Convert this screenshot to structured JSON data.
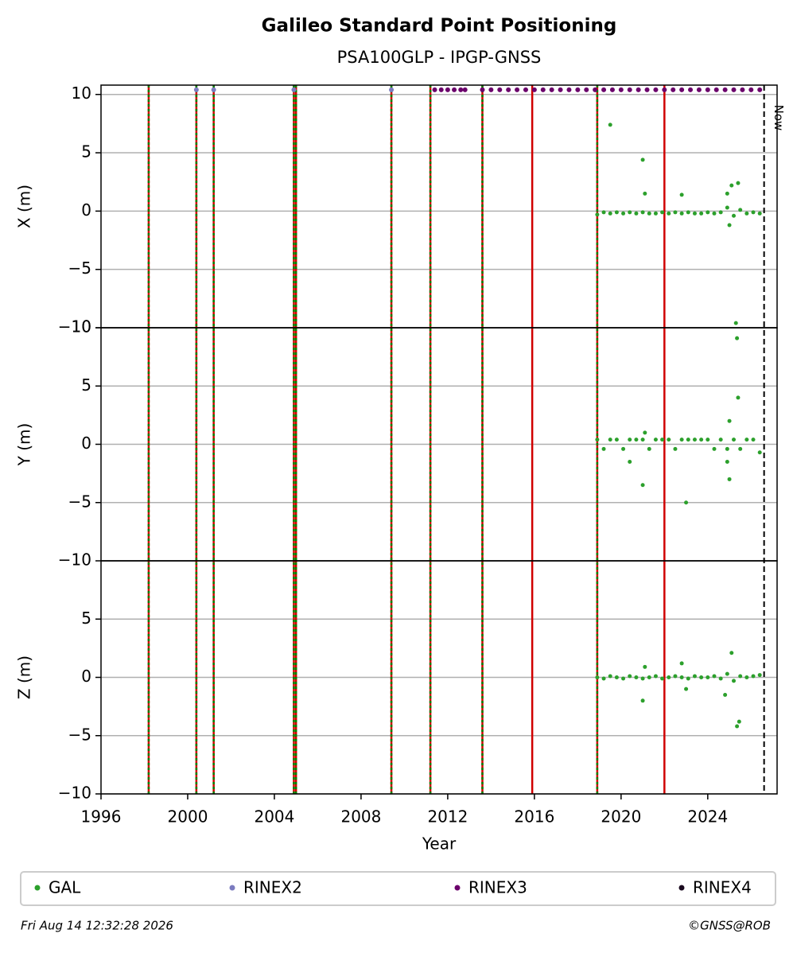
{
  "title": "Galileo Standard Point Positioning",
  "subtitle": "PSA100GLP - IPGP-GNSS",
  "red_lines": [
    1998.2,
    2000.4,
    2001.2,
    2004.9,
    2005.0,
    2009.4,
    2011.2,
    2013.6,
    2015.9,
    2018.9,
    2022.0
  ],
  "green_lines": [
    1998.2,
    2000.4,
    2001.2,
    2004.9,
    2005.0,
    2009.4,
    2011.2,
    2013.6,
    2018.9
  ],
  "now": {
    "x": 2026.6,
    "label": "Now"
  },
  "footer_left": "Fri Aug 14 12:32:28 2026",
  "footer_right": "©GNSS@ROB",
  "chart_data": [
    {
      "type": "scatter",
      "ylabel": "X (m)",
      "xlim": [
        1996,
        2027.2
      ],
      "ylim": [
        -10,
        10.8
      ],
      "grid": true,
      "yticks": [
        {
          "value": -10,
          "label": "−10"
        },
        {
          "value": -5,
          "label": "−5"
        },
        0,
        5,
        10
      ],
      "series": [
        {
          "name": "GAL",
          "color": "#2ca02c",
          "x": [
            2018.9,
            2019.2,
            2019.5,
            2019.8,
            2020.1,
            2020.4,
            2020.7,
            2021.0,
            2021.3,
            2021.6,
            2021.9,
            2022.2,
            2022.5,
            2022.8,
            2023.1,
            2023.4,
            2023.7,
            2024.0,
            2024.3,
            2024.6,
            2024.9,
            2025.2,
            2025.5,
            2025.8,
            2026.1,
            2026.4,
            2019.5,
            2021.0,
            2021.1,
            2022.8,
            2025.1,
            2025.4,
            2025.3,
            2024.9,
            2025.0
          ],
          "values": [
            -0.3,
            -0.1,
            -0.2,
            -0.1,
            -0.2,
            -0.1,
            -0.2,
            -0.1,
            -0.2,
            -0.2,
            -0.1,
            -0.2,
            -0.1,
            -0.2,
            -0.1,
            -0.2,
            -0.2,
            -0.1,
            -0.2,
            -0.1,
            0.3,
            -0.4,
            0.1,
            -0.2,
            -0.1,
            -0.2,
            7.4,
            4.4,
            1.5,
            1.4,
            2.2,
            2.4,
            -9.6,
            1.5,
            -1.2
          ]
        },
        {
          "name": "RINEX2",
          "color": "#7b7bbf",
          "x": [
            2000.4,
            2001.2,
            2004.9,
            2009.4
          ],
          "values": [
            10.4,
            10.4,
            10.4,
            10.4
          ]
        },
        {
          "name": "RINEX3",
          "color": "#6b006b",
          "x": [
            2011.4,
            2011.7,
            2012.0,
            2012.3,
            2012.6,
            2012.8,
            2013.6,
            2014.0,
            2014.4,
            2014.8,
            2015.2,
            2015.6,
            2016.0,
            2016.4,
            2016.8,
            2017.2,
            2017.6,
            2018.0,
            2018.4,
            2018.8,
            2019.2,
            2019.6,
            2020.0,
            2020.4,
            2020.8,
            2021.2,
            2021.6,
            2022.0,
            2022.4,
            2022.8,
            2023.2,
            2023.6,
            2024.0,
            2024.4,
            2024.8,
            2025.2,
            2025.6,
            2026.0,
            2026.4
          ],
          "values": [
            10.4,
            10.4,
            10.4,
            10.4,
            10.4,
            10.4,
            10.4,
            10.4,
            10.4,
            10.4,
            10.4,
            10.4,
            10.4,
            10.4,
            10.4,
            10.4,
            10.4,
            10.4,
            10.4,
            10.4,
            10.4,
            10.4,
            10.4,
            10.4,
            10.4,
            10.4,
            10.4,
            10.4,
            10.4,
            10.4,
            10.4,
            10.4,
            10.4,
            10.4,
            10.4,
            10.4,
            10.4,
            10.4,
            10.4
          ]
        },
        {
          "name": "RINEX4",
          "color": "#1a0a1f",
          "x": [],
          "values": []
        }
      ]
    },
    {
      "type": "scatter",
      "ylabel": "Y (m)",
      "xlim": [
        1996,
        2027.2
      ],
      "ylim": [
        -10,
        10
      ],
      "grid": true,
      "yticks": [
        {
          "value": -10,
          "label": "−10"
        },
        {
          "value": -5,
          "label": "−5"
        },
        0,
        5,
        10
      ],
      "series": [
        {
          "name": "GAL",
          "color": "#2ca02c",
          "x": [
            2018.9,
            2019.2,
            2019.5,
            2019.8,
            2020.1,
            2020.4,
            2020.7,
            2021.0,
            2021.3,
            2021.6,
            2021.9,
            2022.2,
            2022.5,
            2022.8,
            2023.1,
            2023.4,
            2023.7,
            2024.0,
            2024.3,
            2024.6,
            2024.9,
            2025.2,
            2025.5,
            2025.8,
            2026.1,
            2026.4,
            2020.4,
            2021.0,
            2021.1,
            2023.0,
            2025.0,
            2025.4,
            2025.35,
            2025.0,
            2024.9
          ],
          "values": [
            0.4,
            -0.4,
            0.4,
            0.4,
            -0.4,
            0.4,
            0.4,
            0.4,
            -0.4,
            0.4,
            0.4,
            0.4,
            -0.4,
            0.4,
            0.4,
            0.4,
            0.4,
            0.4,
            -0.4,
            0.4,
            -0.4,
            0.4,
            -0.4,
            0.4,
            0.4,
            -0.7,
            -1.5,
            -3.5,
            1,
            -5,
            2,
            4,
            9.1,
            -3,
            -1.5
          ]
        }
      ]
    },
    {
      "type": "scatter",
      "ylabel": "Z (m)",
      "xlabel": "Year",
      "xlim": [
        1996,
        2027.2
      ],
      "ylim": [
        -10,
        10
      ],
      "grid": true,
      "xticks": [
        1996,
        2000,
        2004,
        2008,
        2012,
        2016,
        2020,
        2024
      ],
      "yticks": [
        {
          "value": -10,
          "label": "−10"
        },
        {
          "value": -5,
          "label": "−5"
        },
        0,
        5
      ],
      "series": [
        {
          "name": "GAL",
          "color": "#2ca02c",
          "x": [
            2018.9,
            2019.2,
            2019.5,
            2019.8,
            2020.1,
            2020.4,
            2020.7,
            2021.0,
            2021.3,
            2021.6,
            2021.9,
            2022.2,
            2022.5,
            2022.8,
            2023.1,
            2023.4,
            2023.7,
            2024.0,
            2024.3,
            2024.6,
            2024.9,
            2025.2,
            2025.5,
            2025.8,
            2026.1,
            2026.4,
            2021.0,
            2021.1,
            2022.8,
            2023.0,
            2025.1,
            2025.35,
            2025.45,
            2024.8
          ],
          "values": [
            0,
            -0.1,
            0.1,
            0,
            -0.1,
            0.1,
            0,
            -0.1,
            0,
            0.1,
            -0.1,
            0,
            0.1,
            0,
            -0.1,
            0.1,
            0,
            0,
            0.1,
            -0.1,
            0.3,
            -0.3,
            0.1,
            0,
            0.1,
            0.2,
            -2,
            0.9,
            1.2,
            -1,
            2.1,
            -4.2,
            -3.8,
            -1.5
          ]
        }
      ]
    }
  ]
}
